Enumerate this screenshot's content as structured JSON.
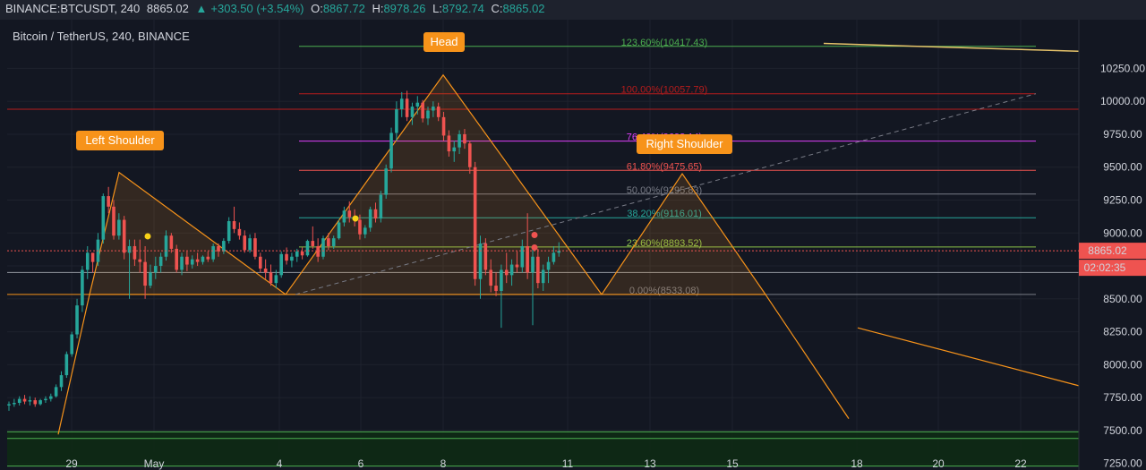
{
  "header": {
    "symbol": "BINANCE:BTCUSDT, 240",
    "last": "8865.02",
    "change_icon": "triangle-up-icon",
    "change": "+303.50 (+3.54%)",
    "open_label": "O:",
    "open": "8867.72",
    "high_label": "H:",
    "high": "8978.26",
    "low_label": "L:",
    "low": "8792.74",
    "close_label": "C:",
    "close": "8865.02"
  },
  "chart_title": "Bitcoin / TetherUS, 240, BINANCE",
  "colors": {
    "background": "#131722",
    "up": "#26a69a",
    "down": "#ef5350",
    "pattern": "#f7931a",
    "fib_0": "#787b86",
    "fib_236": "#8bc34a",
    "fib_382": "#26a69a",
    "fib_50": "#787b86",
    "fib_618": "#ef5350",
    "fib_764": "#e040fb",
    "fib_100": "#b71c1c",
    "fib_1236": "#4caf50"
  },
  "chart_data": {
    "type": "candlestick",
    "y_axis": {
      "ticks": [
        "10250.00",
        "10000.00",
        "9750.00",
        "9500.00",
        "9250.00",
        "9000.00",
        "8750.00",
        "8500.00",
        "8250.00",
        "8000.00",
        "7750.00",
        "7500.00",
        "7250.00"
      ],
      "range": [
        7200,
        10620
      ]
    },
    "x_axis": {
      "ticks": [
        "29",
        "May",
        "4",
        "6",
        "8",
        "11",
        "13",
        "15",
        "18",
        "20",
        "22"
      ]
    },
    "current_price": "8865.02",
    "countdown": "02:02:35",
    "candles": [
      [
        7690,
        7720,
        7650,
        7700
      ],
      [
        7700,
        7740,
        7680,
        7710
      ],
      [
        7710,
        7760,
        7690,
        7740
      ],
      [
        7740,
        7770,
        7700,
        7720
      ],
      [
        7720,
        7760,
        7690,
        7730
      ],
      [
        7730,
        7750,
        7680,
        7700
      ],
      [
        7700,
        7740,
        7690,
        7730
      ],
      [
        7730,
        7760,
        7710,
        7740
      ],
      [
        7740,
        7780,
        7720,
        7760
      ],
      [
        7760,
        7850,
        7750,
        7830
      ],
      [
        7830,
        7950,
        7800,
        7920
      ],
      [
        7920,
        8100,
        7900,
        8080
      ],
      [
        8080,
        8250,
        8060,
        8230
      ],
      [
        8230,
        8500,
        8200,
        8450
      ],
      [
        8450,
        8750,
        8400,
        8720
      ],
      [
        8720,
        8900,
        8650,
        8850
      ],
      [
        8850,
        8820,
        8700,
        8780
      ],
      [
        8780,
        9000,
        8750,
        8950
      ],
      [
        8950,
        9300,
        8920,
        9280
      ],
      [
        9280,
        9350,
        9150,
        9200
      ],
      [
        9200,
        9250,
        8950,
        8980
      ],
      [
        8980,
        9150,
        8950,
        9100
      ],
      [
        9100,
        9130,
        8800,
        8850
      ],
      [
        8850,
        8950,
        8500,
        8900
      ],
      [
        8900,
        8950,
        8750,
        8800
      ],
      [
        8800,
        8950,
        8700,
        8780
      ],
      [
        8780,
        8900,
        8500,
        8600
      ],
      [
        8600,
        8760,
        8580,
        8700
      ],
      [
        8700,
        8820,
        8650,
        8750
      ],
      [
        8750,
        8850,
        8700,
        8820
      ],
      [
        8820,
        9020,
        8790,
        8980
      ],
      [
        8980,
        9000,
        8850,
        8880
      ],
      [
        8880,
        8910,
        8700,
        8720
      ],
      [
        8720,
        8850,
        8680,
        8820
      ],
      [
        8820,
        8860,
        8710,
        8760
      ],
      [
        8760,
        8830,
        8730,
        8800
      ],
      [
        8800,
        8850,
        8750,
        8780
      ],
      [
        8780,
        8830,
        8760,
        8820
      ],
      [
        8820,
        8860,
        8780,
        8800
      ],
      [
        8800,
        8920,
        8780,
        8900
      ],
      [
        8900,
        8920,
        8820,
        8860
      ],
      [
        8860,
        8960,
        8840,
        8940
      ],
      [
        8940,
        9120,
        8920,
        9090
      ],
      [
        9090,
        9200,
        9000,
        9030
      ],
      [
        9030,
        9080,
        8950,
        8980
      ],
      [
        8980,
        9020,
        8850,
        8870
      ],
      [
        8870,
        8990,
        8850,
        8960
      ],
      [
        8960,
        9000,
        8800,
        8820
      ],
      [
        8820,
        8850,
        8700,
        8730
      ],
      [
        8730,
        8800,
        8650,
        8700
      ],
      [
        8700,
        8760,
        8600,
        8620
      ],
      [
        8620,
        8720,
        8580,
        8680
      ],
      [
        8680,
        8860,
        8660,
        8840
      ],
      [
        8840,
        8890,
        8760,
        8790
      ],
      [
        8790,
        8850,
        8740,
        8820
      ],
      [
        8820,
        8880,
        8780,
        8860
      ],
      [
        8860,
        8890,
        8800,
        8830
      ],
      [
        8830,
        8950,
        8820,
        8940
      ],
      [
        8940,
        9050,
        8880,
        8900
      ],
      [
        8900,
        8960,
        8780,
        8820
      ],
      [
        8820,
        8980,
        8800,
        8960
      ],
      [
        8960,
        9000,
        8870,
        8900
      ],
      [
        8900,
        8980,
        8880,
        8960
      ],
      [
        8960,
        9100,
        8950,
        9080
      ],
      [
        9080,
        9200,
        9050,
        9170
      ],
      [
        9170,
        9240,
        9080,
        9120
      ],
      [
        9120,
        9180,
        9050,
        9100
      ],
      [
        9100,
        9140,
        8950,
        8990
      ],
      [
        8990,
        9060,
        8960,
        9040
      ],
      [
        9040,
        9200,
        9010,
        9180
      ],
      [
        9180,
        9230,
        9080,
        9110
      ],
      [
        9110,
        9320,
        9080,
        9290
      ],
      [
        9290,
        9520,
        9260,
        9490
      ],
      [
        9490,
        9800,
        9460,
        9760
      ],
      [
        9760,
        10000,
        9700,
        9940
      ],
      [
        9940,
        10070,
        9880,
        10020
      ],
      [
        10020,
        10080,
        9850,
        9880
      ],
      [
        9880,
        9990,
        9820,
        9960
      ],
      [
        9960,
        10040,
        9900,
        9990
      ],
      [
        9990,
        10010,
        9840,
        9870
      ],
      [
        9870,
        9960,
        9820,
        9930
      ],
      [
        9930,
        10000,
        9880,
        9960
      ],
      [
        9960,
        9990,
        9850,
        9880
      ],
      [
        9880,
        9920,
        9700,
        9740
      ],
      [
        9740,
        9780,
        9580,
        9620
      ],
      [
        9620,
        9700,
        9540,
        9650
      ],
      [
        9650,
        9780,
        9600,
        9750
      ],
      [
        9750,
        9790,
        9640,
        9680
      ],
      [
        9680,
        9700,
        9450,
        9500
      ],
      [
        9500,
        9540,
        8600,
        8650
      ],
      [
        8650,
        8980,
        8500,
        8920
      ],
      [
        8920,
        8960,
        8680,
        8720
      ],
      [
        8720,
        8800,
        8550,
        8600
      ],
      [
        8600,
        8700,
        8520,
        8560
      ],
      [
        8560,
        8760,
        8280,
        8720
      ],
      [
        8720,
        8850,
        8620,
        8680
      ],
      [
        8680,
        8800,
        8600,
        8760
      ],
      [
        8760,
        8860,
        8700,
        8740
      ],
      [
        8740,
        8950,
        8700,
        8900
      ],
      [
        8900,
        9150,
        8650,
        8700
      ],
      [
        8700,
        8900,
        8300,
        8820
      ],
      [
        8820,
        8880,
        8580,
        8620
      ],
      [
        8620,
        8760,
        8560,
        8720
      ],
      [
        8720,
        8820,
        8620,
        8780
      ],
      [
        8780,
        8900,
        8760,
        8850
      ],
      [
        8850,
        8930,
        8820,
        8865
      ]
    ],
    "fib_levels": [
      {
        "label": "0.00%(8533.08)",
        "value": 8533.08
      },
      {
        "label": "23.60%(8893.52)",
        "value": 8893.52
      },
      {
        "label": "38.20%(9116.01)",
        "value": 9116.01
      },
      {
        "label": "50.00%(9295.83)",
        "value": 9295.83
      },
      {
        "label": "61.80%(9475.65)",
        "value": 9475.65
      },
      {
        "label": "76.40%(9698.14)",
        "value": 9698.14
      },
      {
        "label": "100.00%(10057.79)",
        "value": 10057.79
      },
      {
        "label": "123.60%(10417.43)",
        "value": 10417.43
      }
    ],
    "annotations": [
      "Left Shoulder",
      "Head",
      "Right Shoulder"
    ]
  }
}
